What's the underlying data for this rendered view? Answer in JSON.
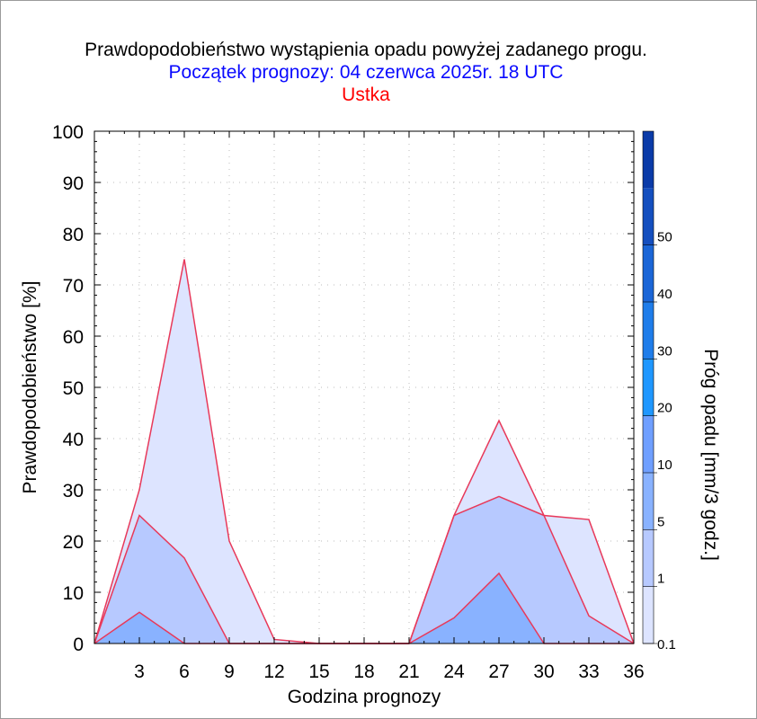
{
  "chart_data": {
    "type": "area",
    "title": "Prawdopodobieństwo wystąpienia opadu powyżej zadanego progu.",
    "subtitle": "Początek prognozy: 04 czerwca 2025r. 18 UTC",
    "location": "Ustka",
    "xlabel": "Godzina prognozy",
    "ylabel": "Prawdopodobieństwo [%]",
    "colorbar_label": "Próg opadu [mm/3 godz.]",
    "xlim": [
      0,
      36
    ],
    "ylim": [
      0,
      100
    ],
    "xticks": [
      3,
      6,
      9,
      12,
      15,
      18,
      21,
      24,
      27,
      30,
      33,
      36
    ],
    "yticks": [
      0,
      10,
      20,
      30,
      40,
      50,
      60,
      70,
      80,
      90,
      100
    ],
    "x": [
      0,
      3,
      6,
      9,
      12,
      15,
      18,
      21,
      24,
      27,
      30,
      33,
      36
    ],
    "grid": true,
    "series": [
      {
        "threshold": "0.1",
        "color": "#dde4ff",
        "values": [
          0,
          30,
          75,
          20,
          0.8,
          0,
          0,
          0,
          25,
          43.5,
          25,
          24.2,
          0
        ]
      },
      {
        "threshold": "1",
        "color": "#b7c9ff",
        "values": [
          0,
          25,
          16.7,
          0,
          0,
          0,
          0,
          0,
          25,
          28.7,
          25,
          5.4,
          0
        ]
      },
      {
        "threshold": "5",
        "color": "#89b2ff",
        "values": [
          0,
          6.1,
          0,
          0,
          0,
          0,
          0,
          0,
          5,
          13.7,
          0,
          0,
          0
        ]
      }
    ],
    "line_color": "#e8395a",
    "colorbar": {
      "levels": [
        "0.1",
        "1",
        "5",
        "10",
        "20",
        "30",
        "40",
        "50"
      ],
      "colors": [
        "#dde4ff",
        "#b7c9ff",
        "#89b2ff",
        "#6f9fff",
        "#1f97ff",
        "#1f7dea",
        "#1b66d7",
        "#154fbf",
        "#0b3ba8"
      ]
    }
  }
}
